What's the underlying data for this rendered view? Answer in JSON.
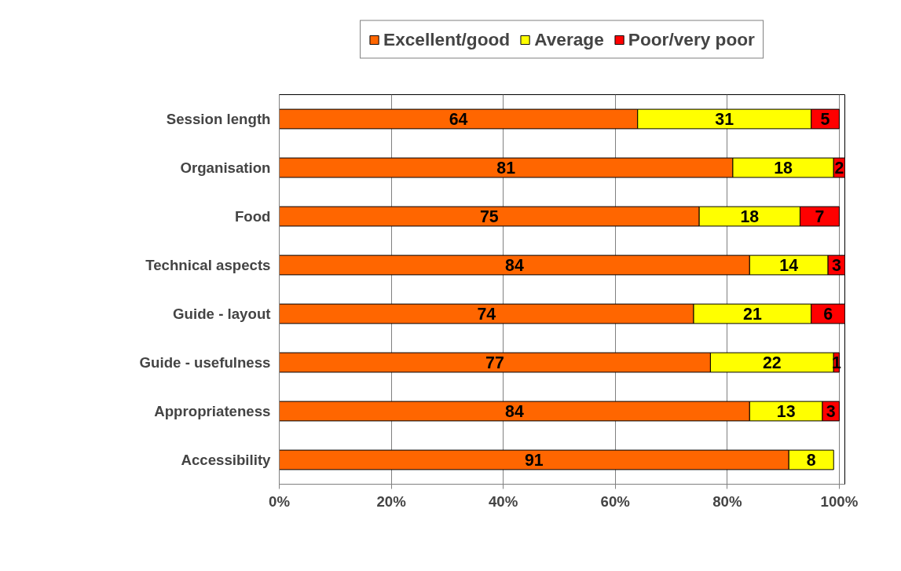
{
  "chart_data": {
    "type": "bar",
    "orientation": "horizontal",
    "stacked": true,
    "categories": [
      "Session length",
      "Organisation",
      "Food",
      "Technical aspects",
      "Guide - layout",
      "Guide - usefulness",
      "Appropriateness",
      "Accessibility"
    ],
    "series": [
      {
        "name": "Excellent/good",
        "color": "#ff6600",
        "values": [
          64,
          81,
          75,
          84,
          74,
          77,
          84,
          91
        ]
      },
      {
        "name": "Average",
        "color": "#ffff00",
        "values": [
          31,
          18,
          18,
          14,
          21,
          22,
          13,
          8
        ]
      },
      {
        "name": "Poor/very poor",
        "color": "#ff0000",
        "values": [
          5,
          2,
          7,
          3,
          6,
          1,
          3,
          null
        ]
      }
    ],
    "xlim": [
      0,
      101
    ],
    "xticks": [
      {
        "value": 0,
        "label": "0%"
      },
      {
        "value": 20,
        "label": "20%"
      },
      {
        "value": 40,
        "label": "40%"
      },
      {
        "value": 60,
        "label": "60%"
      },
      {
        "value": 80,
        "label": "80%"
      },
      {
        "value": 100,
        "label": "100%"
      }
    ],
    "data_labels": true,
    "grid": "x",
    "legend": "top"
  }
}
